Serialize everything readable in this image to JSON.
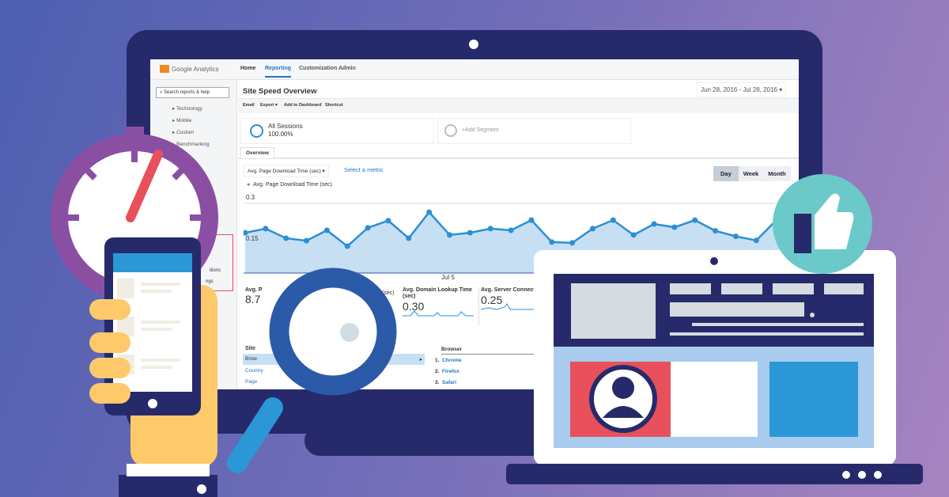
{
  "app": {
    "logo": "Google Analytics",
    "nav": [
      "Home",
      "Reporting",
      "Customization",
      "Admin"
    ],
    "active_nav": "Reporting"
  },
  "sidebar": {
    "search_placeholder": "Search reports & help",
    "items": [
      "Technology",
      "Mobile",
      "Custom",
      "Benchmarking"
    ],
    "partial_items": [
      "itions",
      "ngs"
    ]
  },
  "report": {
    "title": "Site Speed Overview",
    "date_range": "Jun 28, 2016 - Jul 28, 2016",
    "actions": [
      "Email",
      "Export",
      "Add to Dashboard",
      "Shortcut"
    ],
    "segment": {
      "name": "All Sessions",
      "value": "100.00%",
      "add": "+Add Segment"
    },
    "tab": "Overview",
    "metric_select": "Avg. Page Download Time (sec)",
    "select_metric": "Select a metric",
    "granularity": [
      "Day",
      "Week",
      "Month"
    ],
    "active_granularity": "Day",
    "metrics": [
      {
        "label": "Avg. P",
        "value": "8.7"
      },
      {
        "label": "(sec)",
        "value": ""
      },
      {
        "label": "Avg. Domain Lookup Time (sec)",
        "value": "0.30"
      },
      {
        "label": "Avg. Server Connecti (sec)",
        "value": "0.25"
      }
    ],
    "left_table": {
      "header": "Site",
      "rows": [
        "Brow",
        "Country",
        "Page"
      ]
    },
    "browser_table": {
      "header": "Browser",
      "rows": [
        {
          "n": "1.",
          "name": "Chrome"
        },
        {
          "n": "2.",
          "name": "Firefox"
        },
        {
          "n": "3.",
          "name": "Safari"
        }
      ]
    }
  },
  "chart_data": {
    "type": "area",
    "series": [
      {
        "name": "Avg. Page Download Time (sec)",
        "values": [
          0.193,
          0.208,
          0.173,
          0.164,
          0.202,
          0.144,
          0.211,
          0.237,
          0.173,
          0.268,
          0.185,
          0.193,
          0.208,
          0.202,
          0.239,
          0.159,
          0.156,
          0.208,
          0.239,
          0.185,
          0.225,
          0.213,
          0.239,
          0.2,
          0.18,
          0.165,
          0.24,
          0.23
        ]
      }
    ],
    "y_ticks": [
      "0.3",
      "0.15"
    ],
    "ylim": [
      0,
      0.3
    ],
    "x_tick": "Jul 5",
    "color": "#2a8fd6"
  },
  "colors": {
    "navy": "#262a6b",
    "purple": "#8a4fa3",
    "teal": "#6cc9c9",
    "red": "#e8505b",
    "blue": "#2b5aa8"
  }
}
